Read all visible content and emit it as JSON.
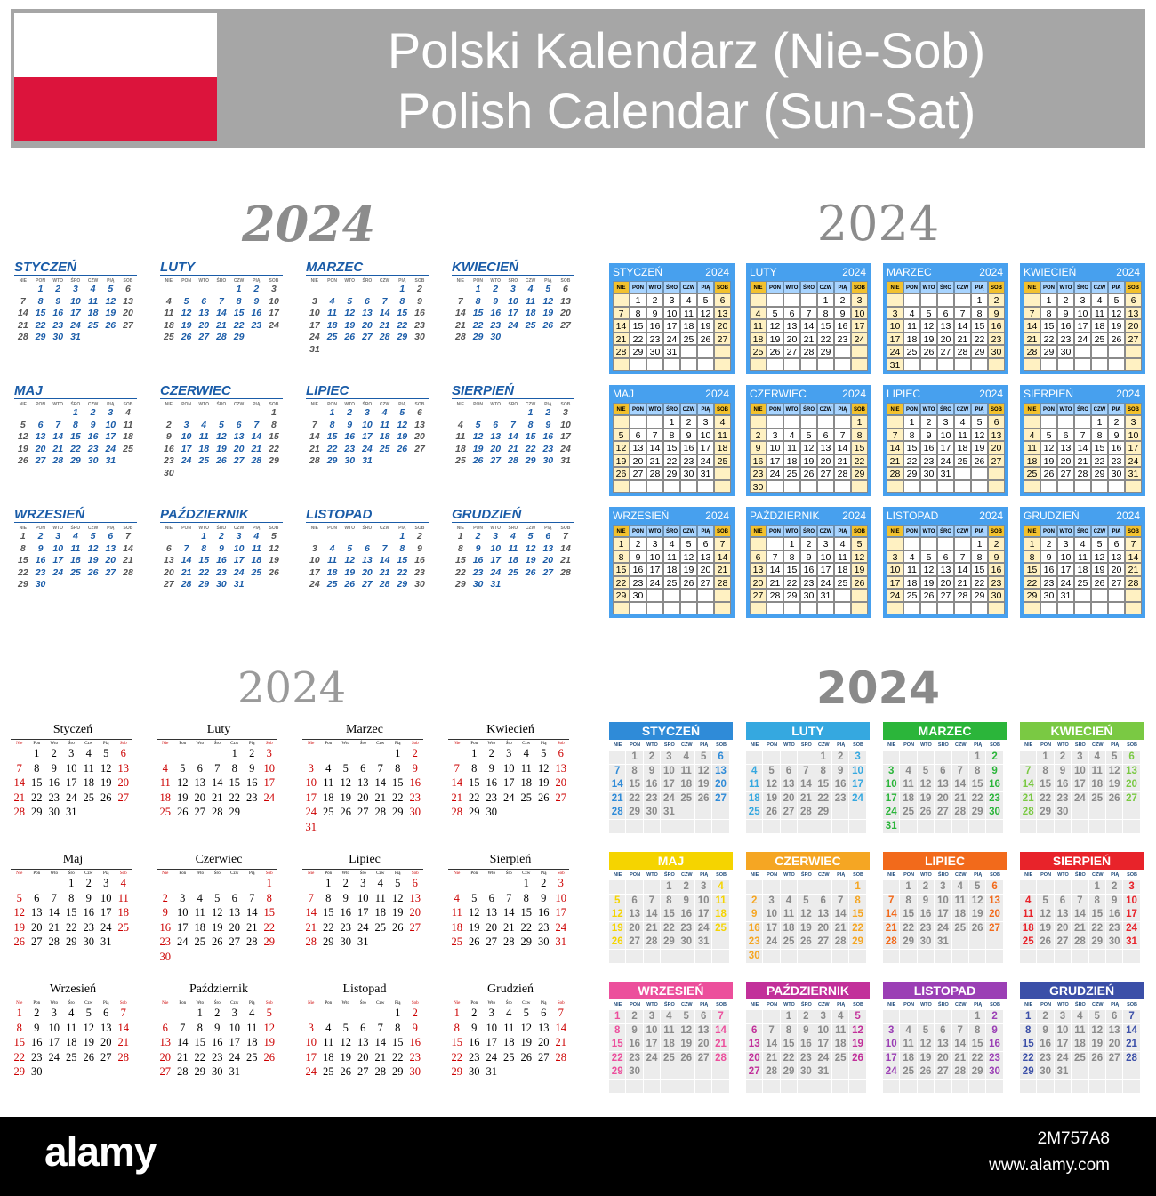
{
  "header": {
    "title_pl": "Polski Kalendarz (Nie-Sob)",
    "title_en": "Polish Calendar (Sun-Sat)",
    "flag_colors": [
      "#ffffff",
      "#dc143c"
    ],
    "background": "#a6a6a6"
  },
  "year": "2024",
  "weekdays_upper": [
    "NIE",
    "PON",
    "WTO",
    "ŚRO",
    "CZW",
    "PIĄ",
    "SOB"
  ],
  "weekdays_title": [
    "Nie",
    "Pon",
    "Wto",
    "Śro",
    "Czw",
    "Pią",
    "Sob"
  ],
  "months": [
    {
      "upper": "STYCZEŃ",
      "title": "Styczeń",
      "start": 1,
      "days": 31
    },
    {
      "upper": "LUTY",
      "title": "Luty",
      "start": 4,
      "days": 29
    },
    {
      "upper": "MARZEC",
      "title": "Marzec",
      "start": 5,
      "days": 31
    },
    {
      "upper": "KWIECIEŃ",
      "title": "Kwiecień",
      "start": 1,
      "days": 30
    },
    {
      "upper": "MAJ",
      "title": "Maj",
      "start": 3,
      "days": 31
    },
    {
      "upper": "CZERWIEC",
      "title": "Czerwiec",
      "start": 6,
      "days": 30
    },
    {
      "upper": "LIPIEC",
      "title": "Lipiec",
      "start": 1,
      "days": 31
    },
    {
      "upper": "SIERPIEŃ",
      "title": "Sierpień",
      "start": 4,
      "days": 31
    },
    {
      "upper": "WRZESIEŃ",
      "title": "Wrzesień",
      "start": 0,
      "days": 30
    },
    {
      "upper": "PAŹDZIERNIK",
      "title": "Październik",
      "start": 2,
      "days": 31
    },
    {
      "upper": "LISTOPAD",
      "title": "Listopad",
      "start": 5,
      "days": 30
    },
    {
      "upper": "GRUDZIEŃ",
      "title": "Grudzień",
      "start": 0,
      "days": 31
    }
  ],
  "colors": {
    "style_a_blue": "#1a5ca8",
    "style_b_blue": "#47a0ee",
    "style_b_weekend": "#f2c12e",
    "style_c_weekend": "#cc0000",
    "style_d_months": [
      "#2f8bd8",
      "#35a8e0",
      "#2bb53a",
      "#7ac943",
      "#f5d400",
      "#f5a623",
      "#f26a1b",
      "#e8232a",
      "#ec4f9c",
      "#c2309a",
      "#9b3fb5",
      "#3b4fa8"
    ]
  },
  "footer": {
    "logo": "alamy",
    "image_id": "2M757A8",
    "url": "www.alamy.com"
  }
}
